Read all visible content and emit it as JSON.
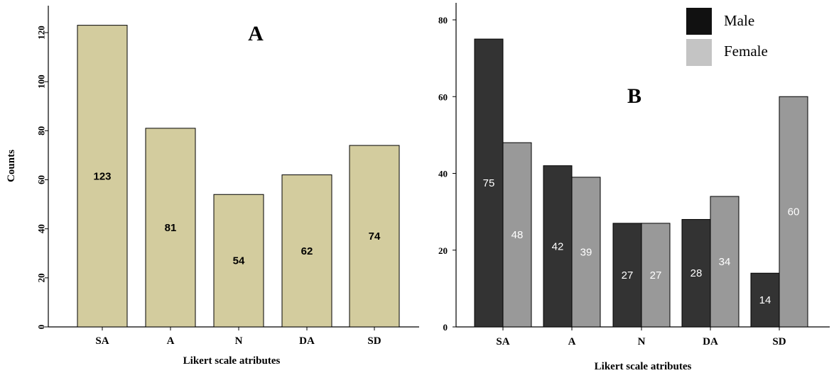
{
  "chart_data": [
    {
      "type": "bar",
      "panel_label": "A",
      "categories": [
        "SA",
        "A",
        "N",
        "DA",
        "SD"
      ],
      "values": [
        123,
        81,
        54,
        62,
        74
      ],
      "data_labels": [
        "123",
        "81",
        "54",
        "62",
        "74"
      ],
      "xlabel": "Likert scale atributes",
      "ylabel": "Counts",
      "ylim": [
        0,
        130
      ],
      "yticks": [
        0,
        20,
        40,
        60,
        80,
        100,
        120
      ],
      "ytick_labels": [
        "0",
        "20",
        "40",
        "60",
        "80",
        "100",
        "120"
      ],
      "bar_color": "#d3cc9e",
      "grid": false
    },
    {
      "type": "bar",
      "panel_label": "B",
      "categories": [
        "SA",
        "A",
        "N",
        "DA",
        "SD"
      ],
      "series": [
        {
          "name": "Male",
          "values": [
            75,
            42,
            27,
            28,
            14
          ],
          "data_labels": [
            "75",
            "42",
            "27",
            "28",
            "14"
          ],
          "color": "#333333"
        },
        {
          "name": "Female",
          "values": [
            48,
            39,
            27,
            34,
            60
          ],
          "data_labels": [
            "48",
            "39",
            "27",
            "34",
            "60"
          ],
          "color": "#999999"
        }
      ],
      "xlabel": "Likert scale atributes",
      "ylabel": "",
      "ylim": [
        0,
        84
      ],
      "yticks": [
        0,
        20,
        40,
        60,
        80
      ],
      "ytick_labels": [
        "0",
        "20",
        "40",
        "60",
        "80"
      ],
      "legend": {
        "placement": "top-right",
        "swatch_colors": [
          "#111111",
          "#c4c4c4"
        ]
      },
      "grid": false
    }
  ]
}
